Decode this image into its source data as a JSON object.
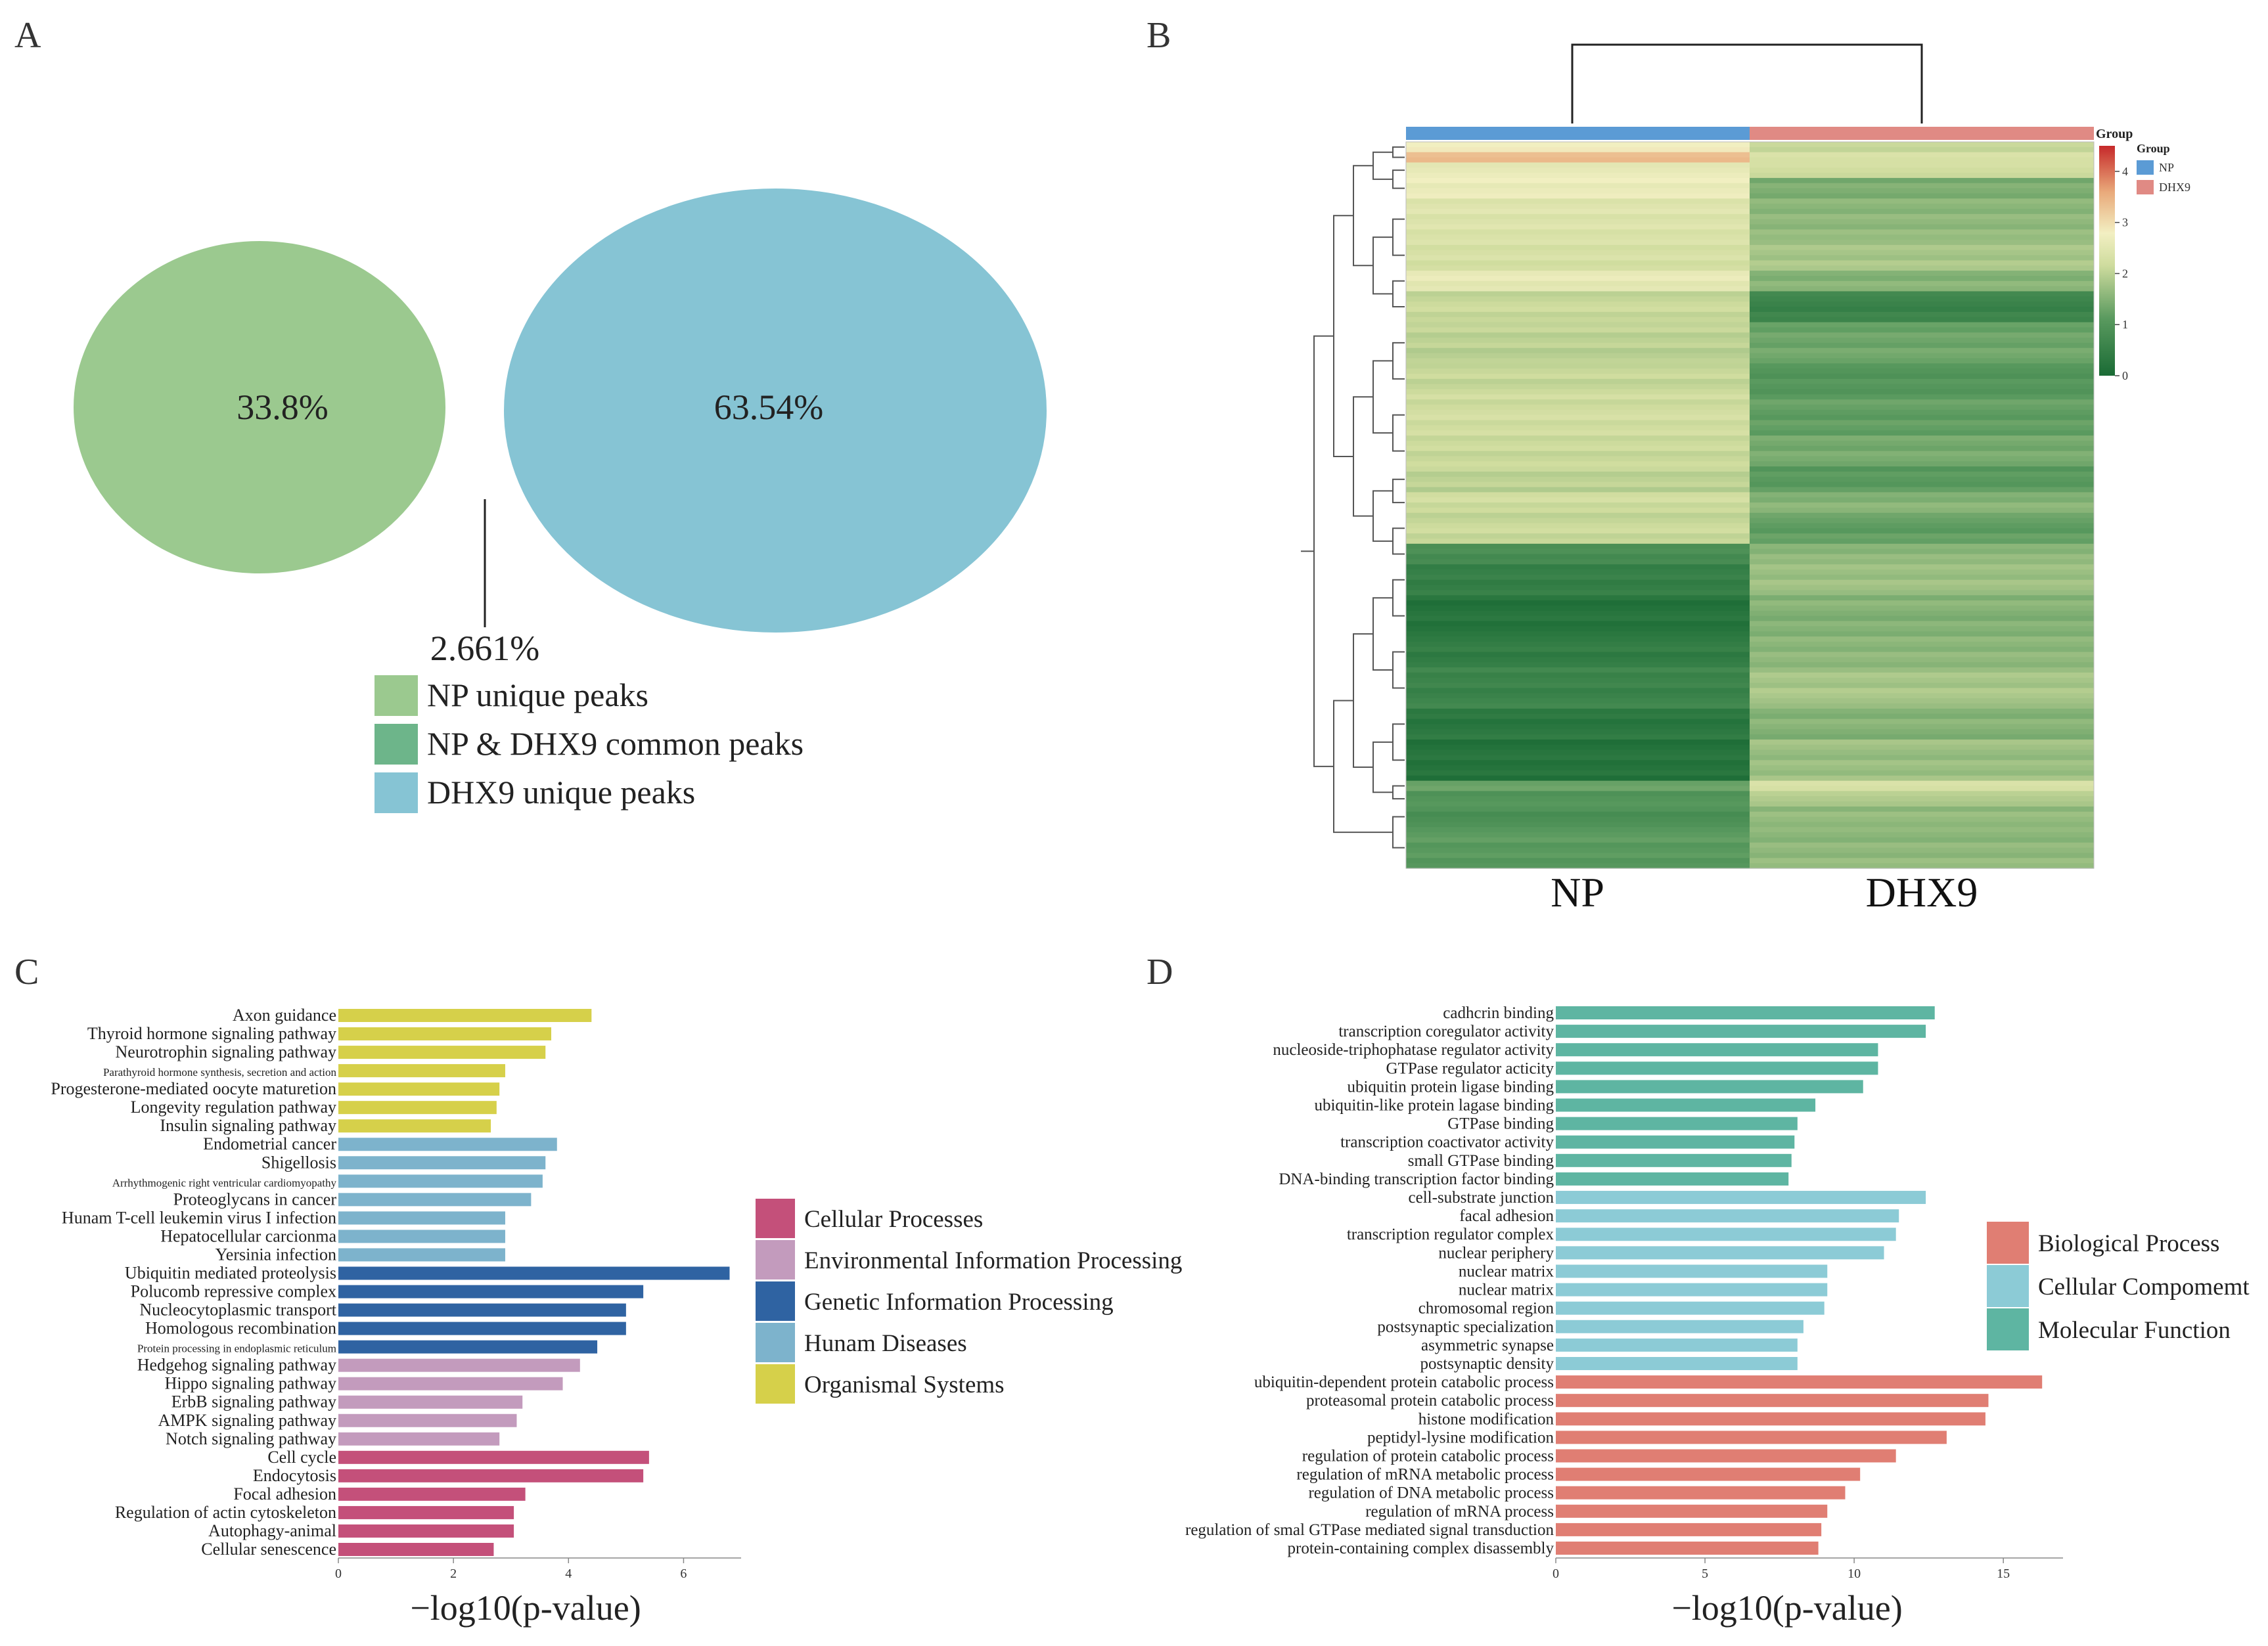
{
  "panels": {
    "a": "A",
    "b": "B",
    "c": "C",
    "d": "D"
  },
  "chart_data": [
    {
      "panel": "A",
      "type": "venn",
      "sets": [
        {
          "name": "NP unique peaks",
          "percent_label": "33.8%",
          "color": "#9bc98f"
        },
        {
          "name": "NP & DHX9 common peaks",
          "percent_label": "2.661%",
          "color": "#6db58a"
        },
        {
          "name": "DHX9 unique peaks",
          "percent_label": "63.54%",
          "color": "#86c4d4"
        }
      ]
    },
    {
      "panel": "B",
      "type": "heatmap",
      "columns": [
        "NP",
        "DHX9"
      ],
      "group_legend": {
        "title": "Group",
        "items": [
          {
            "label": "NP",
            "color": "#5b9bd5"
          },
          {
            "label": "DHX9",
            "color": "#e08a84"
          }
        ]
      },
      "color_scale": {
        "ticks": [
          "4",
          "3",
          "2",
          "1",
          "0"
        ],
        "range": [
          0,
          4.5
        ],
        "colors": [
          "#1a6b35",
          "#8fbf7a",
          "#f2efc2",
          "#e9a97a",
          "#c6292a"
        ]
      },
      "blocks": [
        {
          "rows": 2,
          "np": 2.9,
          "dhx9": 2.0
        },
        {
          "rows": 2,
          "np": 3.3,
          "dhx9": 2.4
        },
        {
          "rows": 3,
          "np": 2.6,
          "dhx9": 2.2
        },
        {
          "rows": 4,
          "np": 2.7,
          "dhx9": 1.4
        },
        {
          "rows": 8,
          "np": 2.4,
          "dhx9": 1.6
        },
        {
          "rows": 6,
          "np": 2.3,
          "dhx9": 1.8
        },
        {
          "rows": 4,
          "np": 2.6,
          "dhx9": 1.5
        },
        {
          "rows": 6,
          "np": 2.1,
          "dhx9": 0.6
        },
        {
          "rows": 8,
          "np": 2.0,
          "dhx9": 1.3
        },
        {
          "rows": 6,
          "np": 2.1,
          "dhx9": 1.0
        },
        {
          "rows": 8,
          "np": 2.2,
          "dhx9": 1.2
        },
        {
          "rows": 6,
          "np": 2.1,
          "dhx9": 1.4
        },
        {
          "rows": 5,
          "np": 2.0,
          "dhx9": 1.1
        },
        {
          "rows": 4,
          "np": 2.2,
          "dhx9": 1.5
        },
        {
          "rows": 6,
          "np": 2.1,
          "dhx9": 1.2
        },
        {
          "rows": 4,
          "np": 0.8,
          "dhx9": 1.6
        },
        {
          "rows": 6,
          "np": 0.5,
          "dhx9": 1.7
        },
        {
          "rows": 8,
          "np": 0.2,
          "dhx9": 1.5
        },
        {
          "rows": 6,
          "np": 0.4,
          "dhx9": 1.6
        },
        {
          "rows": 8,
          "np": 0.6,
          "dhx9": 1.8
        },
        {
          "rows": 6,
          "np": 0.3,
          "dhx9": 1.5
        },
        {
          "rows": 8,
          "np": 0.2,
          "dhx9": 1.7
        },
        {
          "rows": 2,
          "np": 1.2,
          "dhx9": 2.4
        },
        {
          "rows": 3,
          "np": 1.0,
          "dhx9": 1.9
        },
        {
          "rows": 4,
          "np": 0.9,
          "dhx9": 1.6
        },
        {
          "rows": 8,
          "np": 1.1,
          "dhx9": 1.6
        }
      ]
    },
    {
      "panel": "C",
      "type": "bar",
      "orientation": "horizontal",
      "xlabel": "−log10(p-value)",
      "xlim": [
        0,
        7
      ],
      "xticks": [
        0,
        2,
        4,
        6
      ],
      "legend": [
        {
          "name": "Cellular Processes",
          "color": "#c4507a"
        },
        {
          "name": "Environmental Information Processing",
          "color": "#c39bbd"
        },
        {
          "name": "Genetic Information Processing",
          "color": "#2f63a2"
        },
        {
          "name": "Hunam Diseases",
          "color": "#7db3cc"
        },
        {
          "name": "Organismal Systems",
          "color": "#d6d04a"
        }
      ],
      "categories": [
        "Axon guidance",
        "Thyroid hormone signaling pathway",
        "Neurotrophin signaling pathway",
        "Parathyroid hormone synthesis, secretion and action",
        "Progesterone-mediated oocyte maturetion",
        "Longevity regulation pathway",
        "Insulin signaling pathway",
        "Endometrial cancer",
        "Shigellosis",
        "Arrhythmogenic right ventricular cardiomyopathy",
        "Proteoglycans in cancer",
        "Hunam T-cell leukemin virus I infection",
        "Hepatocellular carcionma",
        "Yersinia infection",
        "Ubiquitin mediated proteolysis",
        "Polucomb repressive complex",
        "Nucleocytoplasmic transport",
        "Homologous recombination",
        "Protein processing in endoplasmic reticulum",
        "Hedgehog signaling pathway",
        "Hippo signaling pathway",
        "ErbB signaling pathway",
        "AMPK signaling pathway",
        "Notch signaling pathway",
        "Cell cycle",
        "Endocytosis",
        "Focal adhesion",
        "Regulation of actin cytoskeleton",
        "Autophagy-animal",
        "Cellular senescence"
      ],
      "values": [
        4.4,
        3.7,
        3.6,
        2.9,
        2.8,
        2.75,
        2.65,
        3.8,
        3.6,
        3.55,
        3.35,
        2.9,
        2.9,
        2.9,
        6.8,
        5.3,
        5.0,
        5.0,
        4.5,
        4.2,
        3.9,
        3.2,
        3.1,
        2.8,
        5.4,
        5.3,
        3.25,
        3.05,
        3.05,
        2.7
      ],
      "groups": [
        4,
        4,
        4,
        4,
        4,
        4,
        4,
        3,
        3,
        3,
        3,
        3,
        3,
        3,
        2,
        2,
        2,
        2,
        2,
        1,
        1,
        1,
        1,
        1,
        0,
        0,
        0,
        0,
        0,
        0
      ]
    },
    {
      "panel": "D",
      "type": "bar",
      "orientation": "horizontal",
      "xlabel": "−log10(p-value)",
      "xlim": [
        0,
        17
      ],
      "xticks": [
        0,
        5,
        10,
        15
      ],
      "legend": [
        {
          "name": "Biological Process",
          "color": "#e07e73"
        },
        {
          "name": "Cellular Compomemt",
          "color": "#8ccbd6"
        },
        {
          "name": "Molecular Function",
          "color": "#5eb5a2"
        }
      ],
      "categories": [
        "cadhcrin binding",
        "transcription coregulator activity",
        "nucleoside-triphophatase regulator activity",
        "GTPase regulator acticity",
        "ubiquitin protein ligase binding",
        "ubiquitin-like protein lagase binding",
        "GTPase binding",
        "transcription coactivator activity",
        "small GTPase binding",
        "DNA-binding transcription factor binding",
        "cell-substrate junction",
        "facal adhesion",
        "transcription regulator complex",
        "nuclear periphery",
        "nuclear matrix",
        "nuclear matrix",
        "chromosomal region",
        "postsynaptic specialization",
        "asymmetric synapse",
        "postsynaptic density",
        "ubiquitin-dependent protein catabolic process",
        "proteasomal protein catabolic process",
        "histone modification",
        "peptidyl-lysine modification",
        "regulation of protein catabolic process",
        "regulation of mRNA metabolic process",
        "regulation of DNA metabolic process",
        "regulation of mRNA process",
        "regulation of smal GTPase mediated signal transduction",
        "protein-containing complex disassembly"
      ],
      "values": [
        12.7,
        12.4,
        10.8,
        10.8,
        10.3,
        8.7,
        8.1,
        8.0,
        7.9,
        7.8,
        12.4,
        11.5,
        11.4,
        11.0,
        9.1,
        9.1,
        9.0,
        8.3,
        8.1,
        8.1,
        16.3,
        14.5,
        14.4,
        13.1,
        11.4,
        10.2,
        9.7,
        9.1,
        8.9,
        8.8
      ],
      "groups": [
        2,
        2,
        2,
        2,
        2,
        2,
        2,
        2,
        2,
        2,
        1,
        1,
        1,
        1,
        1,
        1,
        1,
        1,
        1,
        1,
        0,
        0,
        0,
        0,
        0,
        0,
        0,
        0,
        0,
        0
      ]
    }
  ]
}
